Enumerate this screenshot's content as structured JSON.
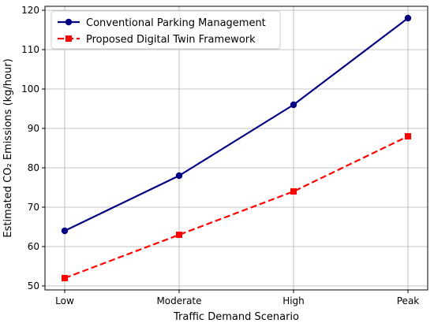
{
  "chart_data": {
    "type": "line",
    "title": "",
    "xlabel": "Traffic Demand Scenario",
    "ylabel": "Estimated CO₂ Emissions (kg/hour)",
    "categories": [
      "Low",
      "Moderate",
      "High",
      "Peak"
    ],
    "ylim": [
      49,
      121
    ],
    "yticks": [
      50,
      60,
      70,
      80,
      90,
      100,
      110,
      120
    ],
    "ytick_labels": [
      "50",
      "60",
      "70",
      "80",
      "90",
      "100",
      "110",
      "120"
    ],
    "grid": true,
    "legend_position": "top-left",
    "series": [
      {
        "name": "Conventional Parking Management",
        "values": [
          64,
          78,
          96,
          118
        ],
        "color": "#000080",
        "line_style": "solid",
        "marker": "circle"
      },
      {
        "name": "Proposed Digital Twin Framework",
        "values": [
          52,
          63,
          74,
          88
        ],
        "color": "#ff0000",
        "line_style": "dashed",
        "marker": "square"
      }
    ]
  }
}
